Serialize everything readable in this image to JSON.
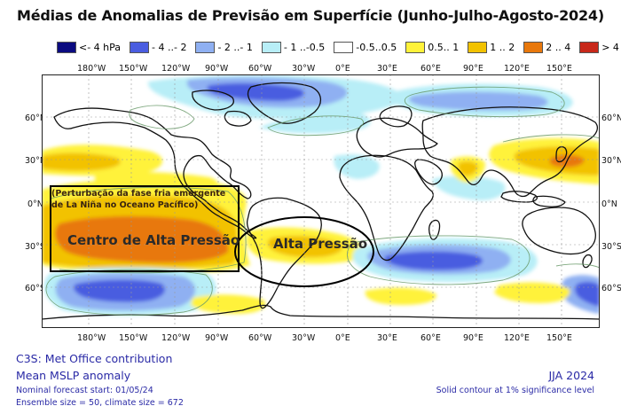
{
  "header": {
    "title": "Médias de Anomalias de Previsão em Superfície (Junho-Julho-Agosto-2024)"
  },
  "legend": {
    "items": [
      {
        "label": "<- 4 hPa",
        "color": "#0b0b80"
      },
      {
        "label": "- 4 ..- 2",
        "color": "#4a5de0"
      },
      {
        "label": "- 2 ..- 1",
        "color": "#8fb0f2"
      },
      {
        "label": "- 1 ..-0.5",
        "color": "#b8eef7"
      },
      {
        "label": "-0.5..0.5",
        "color": "#ffffff"
      },
      {
        "label": "0.5.. 1",
        "color": "#fff23a"
      },
      {
        "label": "1 .. 2",
        "color": "#f2c200"
      },
      {
        "label": "2 .. 4",
        "color": "#e8780c"
      },
      {
        "label": "> 4 hPa",
        "color": "#c8281a"
      }
    ]
  },
  "axes": {
    "lon_labels": [
      "180°W",
      "150°W",
      "120°W",
      "90°W",
      "60°W",
      "30°W",
      "0°E",
      "30°E",
      "60°E",
      "90°E",
      "120°E",
      "150°E"
    ],
    "lat_labels": [
      "60°N",
      "30°N",
      "0°N",
      "30°S",
      "60°S"
    ]
  },
  "annotations": {
    "perturbation": "(Perturbação da fase fria emergente de La Niña no Oceano Pacífico)",
    "centro": "Centro de Alta Pressão",
    "alta": "Alta Pressão"
  },
  "footer": {
    "contribution": "C3S: Met Office contribution",
    "variable": "Mean MSLP anomaly",
    "start": "Nominal forecast start: 01/05/24",
    "ensemble": "Ensemble size = 50, climate size = 672",
    "season": "JJA 2024",
    "contour_note": "Solid contour at 1% significance level"
  },
  "colors": {
    "footer_text": "#2a2aa6",
    "coast": "#111111"
  }
}
